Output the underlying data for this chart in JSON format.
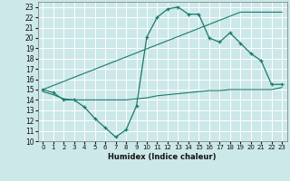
{
  "background_color": "#cce8e8",
  "grid_color": "#ffffff",
  "line_color": "#1a7a6e",
  "xlabel": "Humidex (Indice chaleur)",
  "xlim": [
    -0.5,
    23.5
  ],
  "ylim": [
    10,
    23.5
  ],
  "xticks": [
    0,
    1,
    2,
    3,
    4,
    5,
    6,
    7,
    8,
    9,
    10,
    11,
    12,
    13,
    14,
    15,
    16,
    17,
    18,
    19,
    20,
    21,
    22,
    23
  ],
  "yticks": [
    10,
    11,
    12,
    13,
    14,
    15,
    16,
    17,
    18,
    19,
    20,
    21,
    22,
    23
  ],
  "line1_x": [
    0,
    1,
    2,
    3,
    4,
    5,
    6,
    7,
    8,
    9,
    10,
    11,
    12,
    13,
    14,
    15,
    16,
    17,
    18,
    19,
    20,
    21,
    22,
    23
  ],
  "line1_y": [
    15.0,
    14.7,
    14.0,
    14.0,
    13.3,
    12.2,
    11.3,
    10.4,
    11.1,
    13.4,
    20.1,
    22.0,
    22.8,
    23.0,
    22.3,
    22.3,
    20.0,
    19.6,
    20.5,
    19.5,
    18.5,
    17.8,
    15.5,
    15.5
  ],
  "line2_x": [
    0,
    1,
    2,
    3,
    4,
    5,
    6,
    7,
    8,
    9,
    10,
    11,
    12,
    13,
    14,
    15,
    16,
    17,
    18,
    19,
    20,
    21,
    22,
    23
  ],
  "line2_y": [
    14.8,
    14.5,
    14.1,
    14.0,
    14.0,
    14.0,
    14.0,
    14.0,
    14.0,
    14.1,
    14.2,
    14.4,
    14.5,
    14.6,
    14.7,
    14.8,
    14.9,
    14.9,
    15.0,
    15.0,
    15.0,
    15.0,
    15.0,
    15.2
  ],
  "line3_x": [
    0,
    19,
    23
  ],
  "line3_y": [
    15.0,
    22.5,
    22.5
  ]
}
